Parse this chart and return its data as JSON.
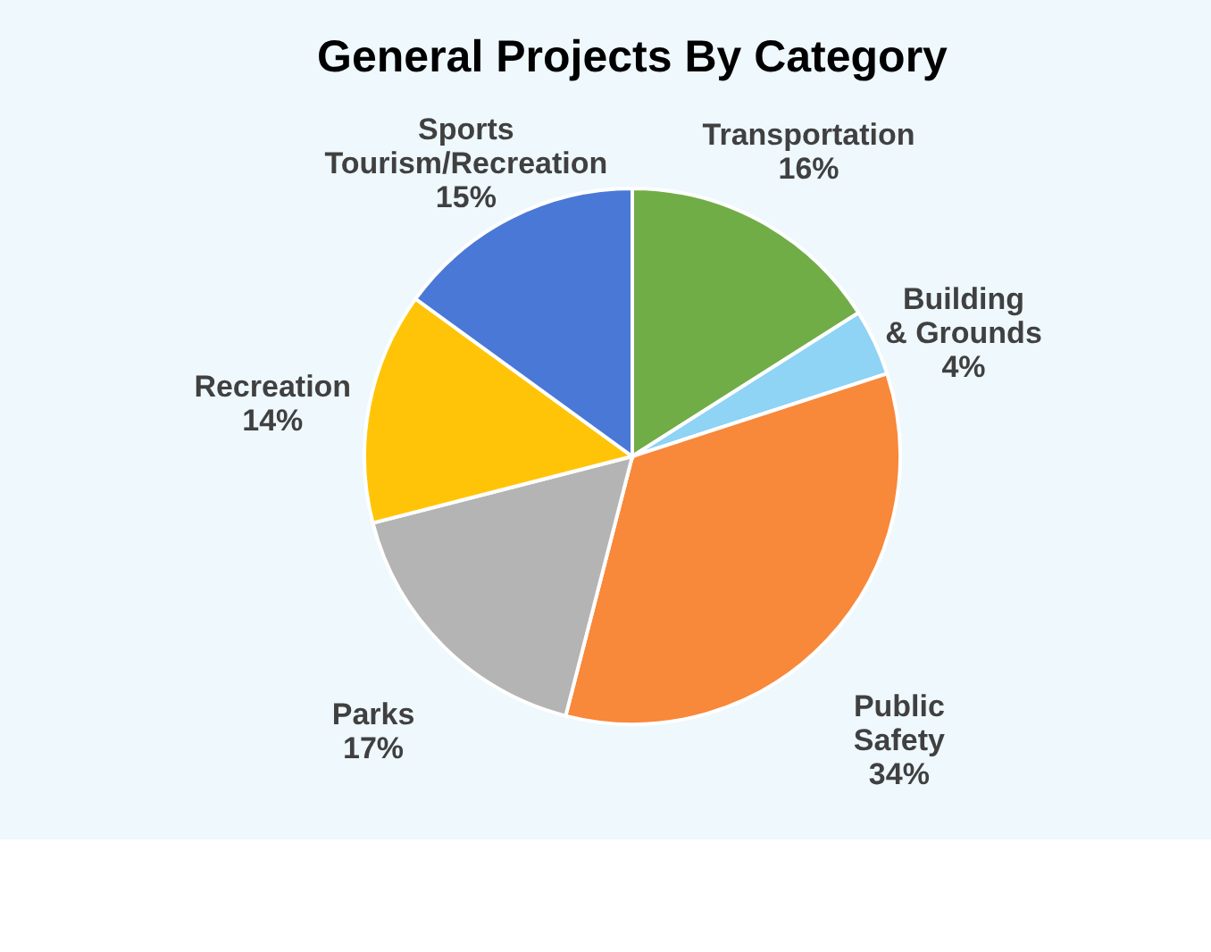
{
  "chart_data": {
    "type": "pie",
    "title": "General Projects By Category",
    "categories": [
      "Transportation",
      "Building & Grounds",
      "Public Safety",
      "Parks",
      "Recreation",
      "Sports Tourism/Recreation"
    ],
    "values": [
      16,
      4,
      34,
      17,
      14,
      15
    ],
    "value_labels": [
      "16%",
      "4%",
      "34%",
      "17%",
      "14%",
      "15%"
    ],
    "colors": [
      "#70ad47",
      "#8fd3f5",
      "#f8883a",
      "#b4b4b4",
      "#ffc408",
      "#4a78d6"
    ],
    "legend": false
  }
}
